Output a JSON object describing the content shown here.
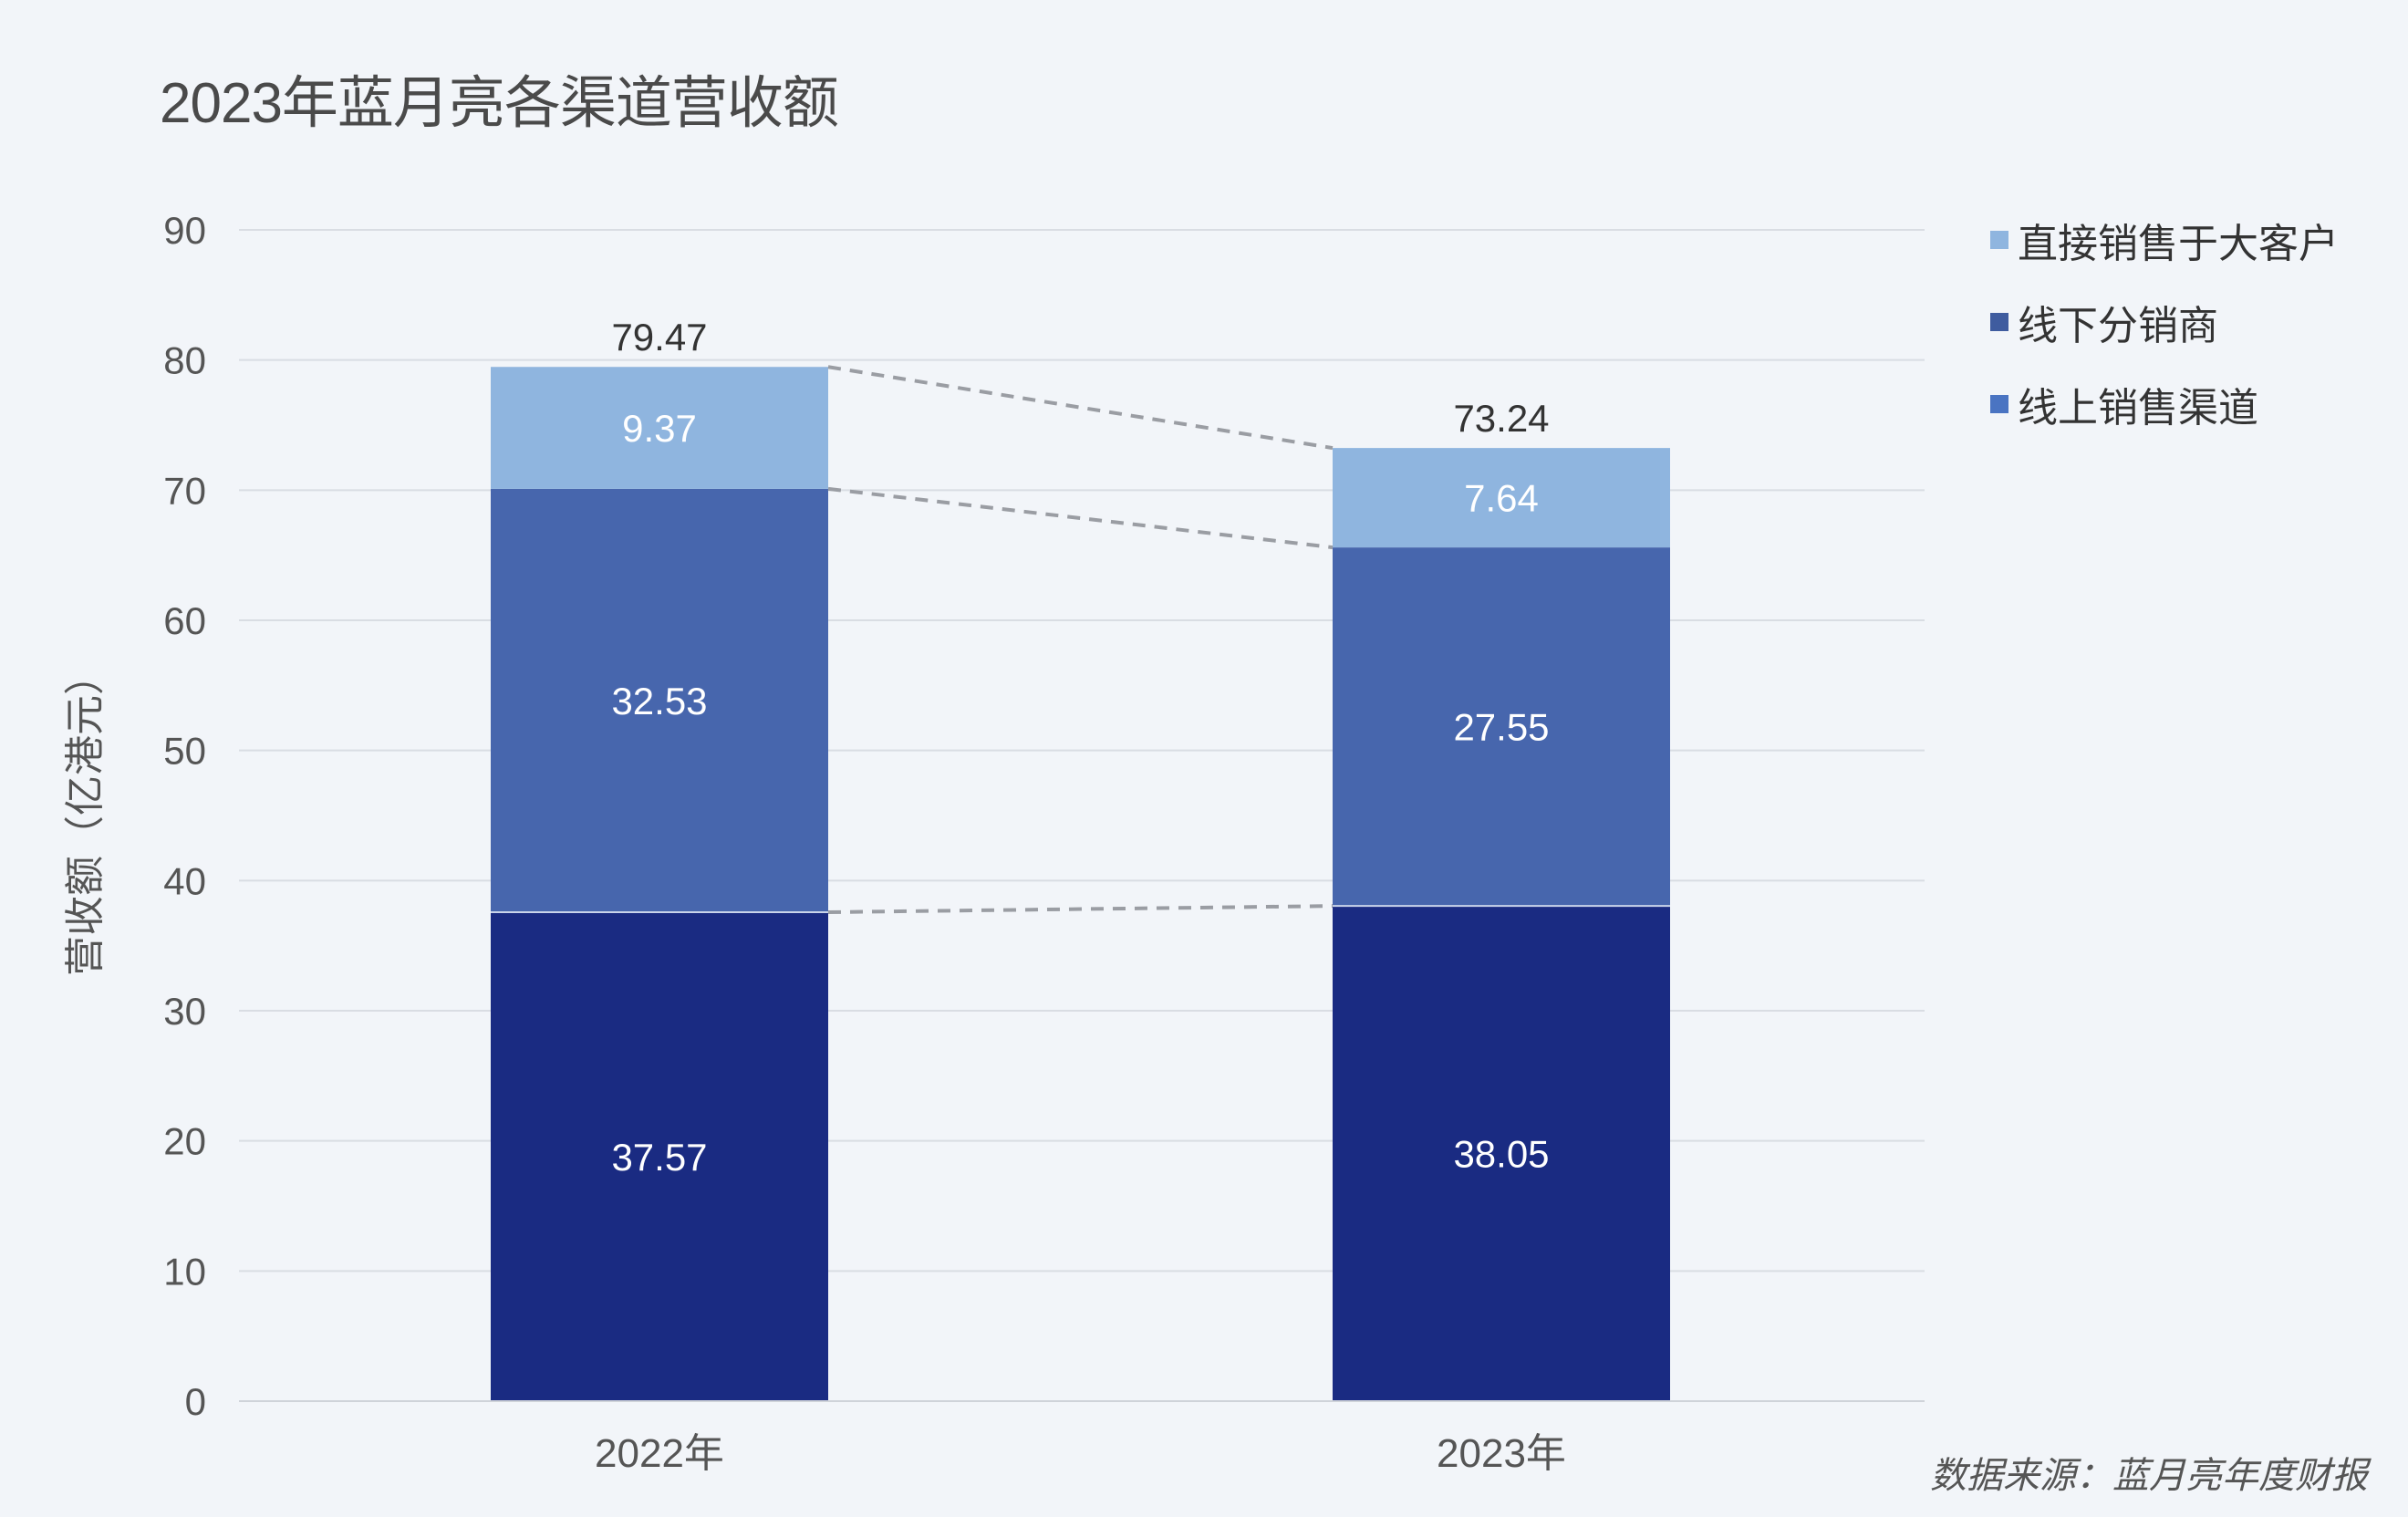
{
  "title": "2023年蓝月亮各渠道营收额",
  "source_note": "数据来源：蓝月亮年度财报",
  "chart_data": {
    "type": "bar",
    "stacked": true,
    "title": "2023年蓝月亮各渠道营收额",
    "xlabel": "",
    "ylabel": "营收额（亿港元）",
    "categories": [
      "2022年",
      "2023年"
    ],
    "ylim": [
      0,
      90
    ],
    "yticks": [
      0,
      10,
      20,
      30,
      40,
      50,
      60,
      70,
      80,
      90
    ],
    "grid": true,
    "legend_position": "top-right",
    "series": [
      {
        "name": "线上销售渠道",
        "values": [
          37.57,
          38.05
        ],
        "labels": [
          "37.57",
          "38.05"
        ],
        "color": "#1a2b82"
      },
      {
        "name": "线下分销商",
        "values": [
          32.53,
          27.55
        ],
        "labels": [
          "32.53",
          "27.55"
        ],
        "color": "#4766ad"
      },
      {
        "name": "直接销售于大客户",
        "values": [
          9.37,
          7.64
        ],
        "labels": [
          "9.37",
          "7.64"
        ],
        "color": "#8fb5df"
      }
    ],
    "totals": [
      "79.47",
      "73.24"
    ],
    "connector_lines": true
  },
  "legend": {
    "items": [
      {
        "label": "直接销售于大客户",
        "color": "#8fb5df"
      },
      {
        "label": "线下分销商",
        "color": "#3f5c9f"
      },
      {
        "label": "线上销售渠道",
        "color": "#4a74c2"
      }
    ]
  },
  "colors": {
    "background": "#f2f5f9",
    "grid": "#d9dde3",
    "connector": "#9a9da3",
    "axis_text": "#555555"
  }
}
